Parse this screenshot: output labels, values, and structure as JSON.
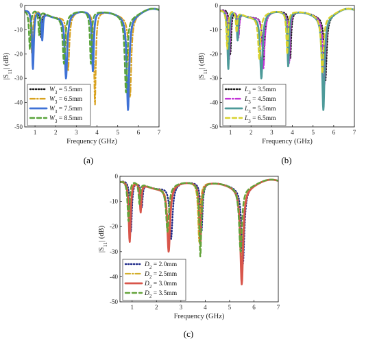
{
  "chart_data": [
    {
      "type": "line",
      "panel_label": "(a)",
      "xlabel": "Frequency (GHz)",
      "ylabel": "|S11| (dB)",
      "ylabel_main": "|S",
      "ylabel_sub": "11",
      "ylabel_end": "| (dB)",
      "xlim": [
        0.5,
        7
      ],
      "ylim": [
        -50,
        0
      ],
      "xticks": [
        1,
        2,
        3,
        4,
        5,
        6,
        7
      ],
      "yticks": [
        0,
        -10,
        -20,
        -30,
        -40,
        -50
      ],
      "xtick_labels": [
        "1",
        "2",
        "3",
        "4",
        "5",
        "6",
        "7"
      ],
      "ytick_labels": [
        "0",
        "-10",
        "-20",
        "-30",
        "-40",
        "-50"
      ],
      "legend_position": "bottom-left",
      "series": [
        {
          "name": "W3 = 5.5mm",
          "sym": "W",
          "sub": "3",
          "val": " = 5.5mm",
          "color": "#1a1a1a",
          "dash": "1.2 2.8",
          "width": 2.4,
          "dips": [
            [
              0.9,
              -24,
              0.05
            ],
            [
              1.3,
              -13,
              0.04
            ],
            [
              2.5,
              -29,
              0.07
            ],
            [
              3.8,
              -27,
              0.05
            ],
            [
              5.5,
              -39,
              0.07
            ]
          ]
        },
        {
          "name": "W3 = 6.5mm",
          "sym": "W",
          "sub": "3",
          "val": " = 6.5mm",
          "color": "#d9a21f",
          "dash": "7 3 1.5 3",
          "width": 2.2,
          "dips": [
            [
              0.85,
              -20,
              0.05
            ],
            [
              1.35,
              -12,
              0.04
            ],
            [
              2.6,
              -27,
              0.07
            ],
            [
              3.9,
              -41,
              0.05
            ],
            [
              5.6,
              -38,
              0.07
            ]
          ]
        },
        {
          "name": "W3 = 7.5mm",
          "sym": "W",
          "sub": "3",
          "val": " = 7.5mm",
          "color": "#3f72d6",
          "dash": "",
          "width": 2.8,
          "dips": [
            [
              0.9,
              -26,
              0.05
            ],
            [
              1.35,
              -14,
              0.04
            ],
            [
              2.5,
              -30,
              0.07
            ],
            [
              3.8,
              -27,
              0.05
            ],
            [
              5.5,
              -43,
              0.07
            ]
          ]
        },
        {
          "name": "W3 = 8.5mm",
          "sym": "W",
          "sub": "3",
          "val": " = 8.5mm",
          "color": "#58a33a",
          "dash": "6 4",
          "width": 2.4,
          "dips": [
            [
              0.75,
              -18,
              0.05
            ],
            [
              1.2,
              -12,
              0.04
            ],
            [
              2.4,
              -24,
              0.07
            ],
            [
              3.7,
              -24,
              0.05
            ],
            [
              5.4,
              -36,
              0.07
            ]
          ]
        }
      ]
    },
    {
      "type": "line",
      "panel_label": "(b)",
      "xlabel": "Frequency (GHz)",
      "ylabel": "|S11| (dB)",
      "ylabel_main": "|S",
      "ylabel_sub": "11",
      "ylabel_end": "| (dB)",
      "xlim": [
        0.5,
        7
      ],
      "ylim": [
        -50,
        0
      ],
      "xticks": [
        1,
        2,
        3,
        4,
        5,
        6,
        7
      ],
      "yticks": [
        0,
        -10,
        -20,
        -30,
        -40,
        -50
      ],
      "xtick_labels": [
        "1",
        "2",
        "3",
        "4",
        "5",
        "6",
        "7"
      ],
      "ytick_labels": [
        "0",
        "-10",
        "-20",
        "-30",
        "-40",
        "-50"
      ],
      "legend_position": "bottom-left",
      "series": [
        {
          "name": "L3 = 3.5mm",
          "sym": "L",
          "sub": "3",
          "val": " = 3.5mm",
          "color": "#1a1a1a",
          "dash": "1.2 2.8",
          "width": 2.4,
          "dips": [
            [
              1.0,
              -20,
              0.05
            ],
            [
              1.4,
              -12,
              0.04
            ],
            [
              2.6,
              -24,
              0.07
            ],
            [
              3.9,
              -22,
              0.05
            ],
            [
              5.6,
              -31,
              0.07
            ]
          ]
        },
        {
          "name": "L3 = 4.5mm",
          "sym": "L",
          "sub": "3",
          "val": " = 4.5mm",
          "color": "#c233d6",
          "dash": "7 3 1.5 3",
          "width": 2.2,
          "dips": [
            [
              0.95,
              -22,
              0.05
            ],
            [
              1.4,
              -13,
              0.04
            ],
            [
              2.6,
              -26,
              0.07
            ],
            [
              3.85,
              -24,
              0.05
            ],
            [
              5.55,
              -33,
              0.07
            ]
          ]
        },
        {
          "name": "L3 = 5.5mm",
          "sym": "L",
          "sub": "3",
          "val": " = 5.5mm",
          "color": "#4d9a99",
          "dash": "",
          "width": 2.8,
          "dips": [
            [
              0.9,
              -26,
              0.05
            ],
            [
              1.35,
              -14,
              0.04
            ],
            [
              2.5,
              -30,
              0.07
            ],
            [
              3.8,
              -25,
              0.05
            ],
            [
              5.5,
              -43,
              0.07
            ]
          ]
        },
        {
          "name": "L3 = 6.5mm",
          "sym": "L",
          "sub": "3",
          "val": " = 6.5mm",
          "color": "#d8d22e",
          "dash": "6 4",
          "width": 2.4,
          "dips": [
            [
              0.85,
              -18,
              0.05
            ],
            [
              1.3,
              -11,
              0.04
            ],
            [
              2.4,
              -22,
              0.07
            ],
            [
              3.75,
              -20,
              0.05
            ],
            [
              5.45,
              -28,
              0.07
            ]
          ]
        }
      ]
    },
    {
      "type": "line",
      "panel_label": "(c)",
      "xlabel": "Frequency (GHz)",
      "ylabel": "|S11| (dB)",
      "ylabel_main": "|S",
      "ylabel_sub": "11",
      "ylabel_end": "| (dB)",
      "xlim": [
        0.5,
        7
      ],
      "ylim": [
        -50,
        0
      ],
      "xticks": [
        1,
        2,
        3,
        4,
        5,
        6,
        7
      ],
      "yticks": [
        0,
        -10,
        -20,
        -30,
        -40,
        -50
      ],
      "xtick_labels": [
        "1",
        "2",
        "3",
        "4",
        "5",
        "6",
        "7"
      ],
      "ytick_labels": [
        "0",
        "-10",
        "-20",
        "-30",
        "-40",
        "-50"
      ],
      "legend_position": "bottom-left",
      "series": [
        {
          "name": "D2 = 2.0mm",
          "sym": "D",
          "sub": "2",
          "val": " = 2.0mm",
          "color": "#1f2a8a",
          "dash": "1.2 2.8",
          "width": 2.4,
          "dips": [
            [
              0.95,
              -22,
              0.05
            ],
            [
              1.4,
              -12,
              0.04
            ],
            [
              2.6,
              -25,
              0.07
            ],
            [
              3.85,
              -22,
              0.05
            ],
            [
              5.55,
              -35,
              0.07
            ]
          ]
        },
        {
          "name": "D2 = 2.5mm",
          "sym": "D",
          "sub": "2",
          "val": " = 2.5mm",
          "color": "#d3ae2a",
          "dash": "7 3 1.5 3",
          "width": 2.2,
          "dips": [
            [
              0.9,
              -20,
              0.05
            ],
            [
              1.35,
              -11,
              0.04
            ],
            [
              2.5,
              -24,
              0.07
            ],
            [
              3.75,
              -26,
              0.05
            ],
            [
              5.5,
              -36,
              0.07
            ]
          ]
        },
        {
          "name": "D2 = 3.0mm",
          "sym": "D",
          "sub": "2",
          "val": " = 3.0mm",
          "color": "#d8554a",
          "dash": "",
          "width": 2.8,
          "dips": [
            [
              0.9,
              -26,
              0.05
            ],
            [
              1.35,
              -14,
              0.04
            ],
            [
              2.5,
              -30,
              0.07
            ],
            [
              3.8,
              -27,
              0.05
            ],
            [
              5.5,
              -43,
              0.07
            ]
          ]
        },
        {
          "name": "D2 = 3.5mm",
          "sym": "D",
          "sub": "2",
          "val": " = 3.5mm",
          "color": "#64a33a",
          "dash": "6 4",
          "width": 2.4,
          "dips": [
            [
              0.85,
              -18,
              0.05
            ],
            [
              1.3,
              -11,
              0.04
            ],
            [
              2.45,
              -22,
              0.07
            ],
            [
              3.8,
              -32,
              0.05
            ],
            [
              5.45,
              -30,
              0.07
            ]
          ]
        }
      ]
    }
  ]
}
